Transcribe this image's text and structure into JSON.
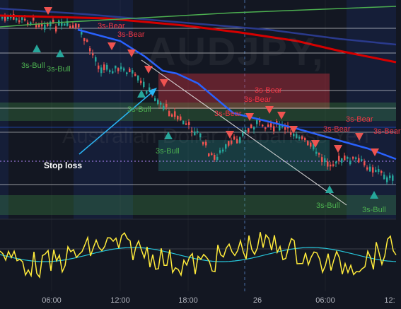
{
  "chart_data": {
    "type": "candlestick",
    "symbol_watermark": "AUDJPY,",
    "symbol_watermark_sub": "Australian Dollar / Japanese Yen",
    "x_ticks": [
      "06:00",
      "12:00",
      "18:00",
      "26",
      "06:00",
      "12:"
    ],
    "annotation_stop_loss": "Stop loss",
    "signal_labels": {
      "bear": "3s-Bear",
      "bull": "3s-Bull"
    },
    "signals": [
      {
        "kind": "bear",
        "label": "3s-Bear"
      },
      {
        "kind": "bull",
        "label": "3s-Bull"
      },
      {
        "kind": "bear",
        "label": "3s-Bear"
      },
      {
        "kind": "bull",
        "label": "3s-Bull"
      },
      {
        "kind": "bear",
        "label": "3s-Bear"
      },
      {
        "kind": "bull",
        "label": "3s-Bull"
      },
      {
        "kind": "bull",
        "label": "3s-Bull"
      },
      {
        "kind": "bear",
        "label": "3s-Bear"
      },
      {
        "kind": "bear",
        "label": "3s-Bear"
      },
      {
        "kind": "bear",
        "label": "3s-Bear"
      },
      {
        "kind": "bear",
        "label": "3s-Bear"
      },
      {
        "kind": "bear",
        "label": "3s-Bear"
      },
      {
        "kind": "bull",
        "label": "3s-Bull"
      },
      {
        "kind": "bull",
        "label": "3s-Bull"
      }
    ],
    "colors": {
      "background": "#131722",
      "up_candle": "#26a69a",
      "down_candle": "#ef5350",
      "ma_blue": "#2962ff",
      "ma_navy": "#2a3a8c",
      "ma_red": "#d50000",
      "ma_green": "#4caf50",
      "oscillator_main": "#ffeb3b",
      "oscillator_signal": "#26c6da",
      "stop_loss_arrow": "#29b6f6",
      "bear_zone": "rgba(242,54,69,0.35)",
      "bull_zone": "rgba(38,166,154,0.25)",
      "green_band": "rgba(76,175,80,0.25)"
    }
  }
}
